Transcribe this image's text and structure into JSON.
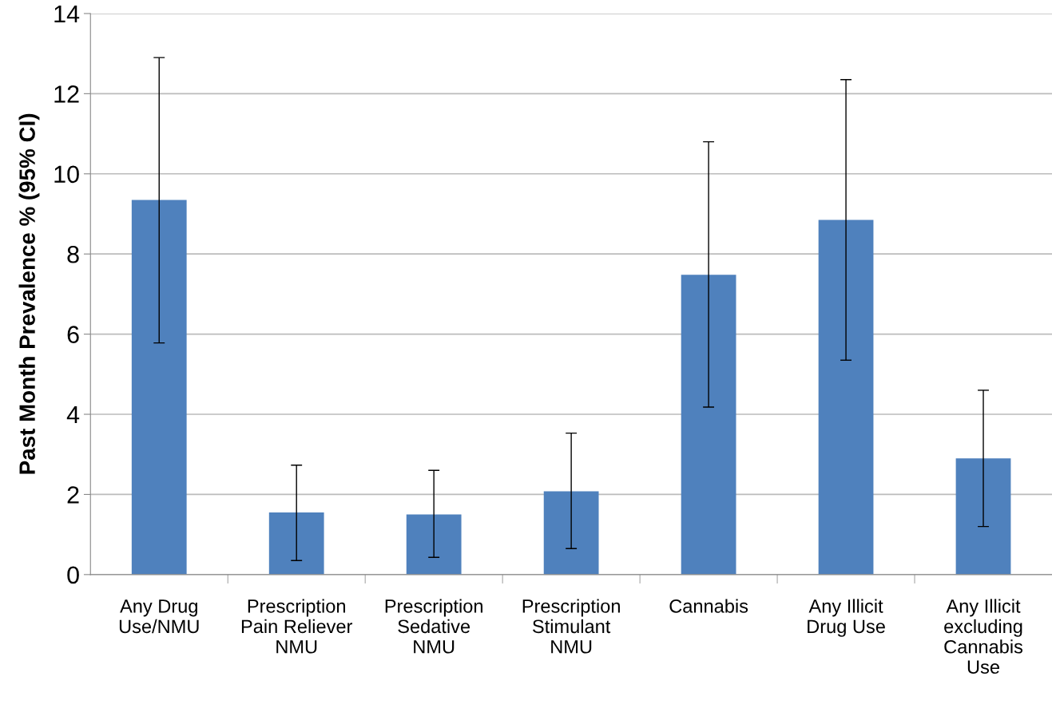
{
  "chart_data": {
    "type": "bar",
    "ylabel": "Past Month Prevalence % (95% CI)",
    "categories": [
      "Any Drug\nUse/NMU",
      "Prescription\nPain Reliever\nNMU",
      "Prescription\nSedative\nNMU",
      "Prescription\nStimulant\nNMU",
      "Cannabis",
      "Any Illicit\nDrug Use",
      "Any Illicit\nexcluding\nCannabis\nUse"
    ],
    "values": [
      9.35,
      1.55,
      1.5,
      2.08,
      7.48,
      8.85,
      2.9
    ],
    "errors": [
      [
        5.78,
        12.9
      ],
      [
        0.35,
        2.73
      ],
      [
        0.43,
        2.6
      ],
      [
        0.65,
        3.53
      ],
      [
        4.18,
        10.8
      ],
      [
        5.35,
        12.35
      ],
      [
        1.2,
        4.6
      ]
    ],
    "color": "#4f81bd",
    "ylim": [
      0,
      14
    ],
    "yticks": [
      0,
      2,
      4,
      6,
      8,
      10,
      12,
      14
    ],
    "grid": "y"
  }
}
